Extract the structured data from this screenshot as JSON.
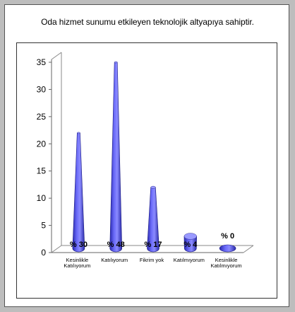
{
  "title": "Oda hizmet sunumu etkileyen teknolojik altyapıya sahiptir.",
  "chart_data": {
    "type": "bar",
    "style": "3d-cone",
    "categories": [
      [
        "Kesinlikle",
        "Katılıyorum"
      ],
      [
        "Katılıyorum"
      ],
      [
        "Fikrim yok"
      ],
      [
        "Katılmıyorum"
      ],
      [
        "Kesinlikle",
        "Katılmıyorum"
      ]
    ],
    "values": [
      22,
      35,
      12,
      3,
      0.5
    ],
    "data_labels": [
      "% 30",
      "% 48",
      "% 17",
      "% 4",
      "% 0"
    ],
    "ylim": [
      0,
      35
    ],
    "yticks": [
      "0",
      "5",
      "10",
      "15",
      "20",
      "25",
      "30",
      "35"
    ],
    "bar_color": "#5050e8",
    "grid": false
  }
}
